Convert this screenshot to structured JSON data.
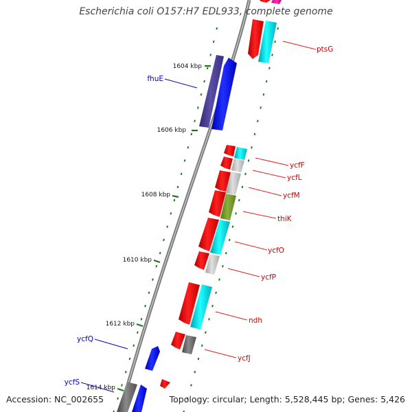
{
  "title": "Escherichia coli O157:H7 EDL933, complete genome",
  "footer": {
    "accession": "Accession: NC_002655",
    "info": "Topology: circular; Length: 5,528,445 bp; Genes: 5,426"
  },
  "kbp_labels": [
    "1604 kbp",
    "1606 kbp",
    "1608 kbp",
    "1610 kbp",
    "1612 kbp",
    "1614 kbp"
  ],
  "genes": [
    {
      "name": "ptsG",
      "strand": "+",
      "color": "#e02020"
    },
    {
      "name": "fhuE",
      "strand": "+",
      "color": "#0000cc"
    },
    {
      "name": "ycfF",
      "strand": "-",
      "color": "#e02020"
    },
    {
      "name": "ycfL",
      "strand": "-",
      "color": "#e02020"
    },
    {
      "name": "ycfM",
      "strand": "-",
      "color": "#e02020"
    },
    {
      "name": "thiK",
      "strand": "-",
      "color": "#e02020"
    },
    {
      "name": "ycfO",
      "strand": "-",
      "color": "#e02020"
    },
    {
      "name": "ycfP",
      "strand": "-",
      "color": "#e02020"
    },
    {
      "name": "ndh",
      "strand": "-",
      "color": "#e02020"
    },
    {
      "name": "ycfQ",
      "strand": "+",
      "color": "#0000cc"
    },
    {
      "name": "ycfJ",
      "strand": "-",
      "color": "#e02020"
    },
    {
      "name": "ycfS",
      "strand": "+",
      "color": "#0000cc"
    }
  ],
  "colors": {
    "backbone": "#8a8a8a",
    "red_feature": "#ff1a1a",
    "blue_feature": "#1a1aff",
    "purple_feature": "#4a4090",
    "cyan_feature": "#00d0e0",
    "gray_feature": "#c0c0c0",
    "olive_feature": "#7a9a2a",
    "tick": "#1a7a1a"
  }
}
